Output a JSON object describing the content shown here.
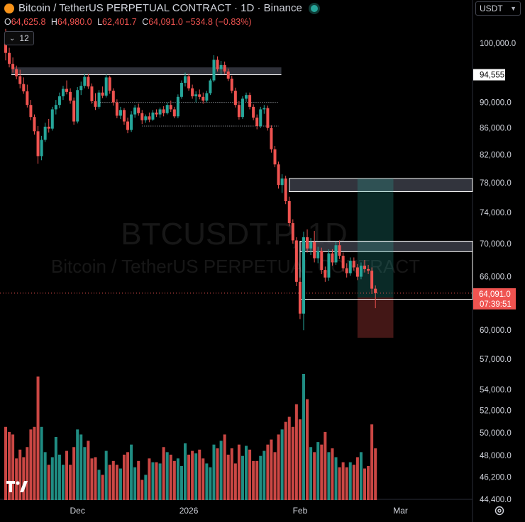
{
  "header": {
    "title": "Bitcoin / TetherUS PERPETUAL CONTRACT · 1D · Binance",
    "ohlc": {
      "open_label": "O",
      "open": "64,625.8",
      "high_label": "H",
      "high": "64,980.0",
      "low_label": "L",
      "low": "62,401.7",
      "close_label": "C",
      "close": "64,091.0",
      "change": "−534.8 (−0.83%)"
    },
    "indicator_count": "12",
    "currency": "USDT"
  },
  "watermark": {
    "symbol": "BTCUSDT.P, 1D",
    "name": "Bitcoin / TetherUS PERPETUAL CONTRACT"
  },
  "colors": {
    "up": "#26a69a",
    "down": "#ef5350",
    "background": "#000000",
    "axis_text": "#d1d4dc"
  },
  "chart_data": {
    "type": "candlestick",
    "symbol": "BTCUSDT.P",
    "interval": "1D",
    "y_scale": "log",
    "ylim": [
      44400,
      104000
    ],
    "y_ticks": [
      {
        "value": 100000,
        "label": "100,000.0"
      },
      {
        "value": 94555,
        "label": "94,555.0"
      },
      {
        "value": 90000,
        "label": "90,000.0"
      },
      {
        "value": 86000,
        "label": "86,000.0"
      },
      {
        "value": 82000,
        "label": "82,000.0"
      },
      {
        "value": 78000,
        "label": "78,000.0"
      },
      {
        "value": 74000,
        "label": "74,000.0"
      },
      {
        "value": 70000,
        "label": "70,000.0"
      },
      {
        "value": 66000,
        "label": "66,000.0"
      },
      {
        "value": 60000,
        "label": "60,000.0"
      },
      {
        "value": 57000,
        "label": "57,000.0"
      },
      {
        "value": 54000,
        "label": "54,000.0"
      },
      {
        "value": 52000,
        "label": "52,000.0"
      },
      {
        "value": 50000,
        "label": "50,000.0"
      },
      {
        "value": 48000,
        "label": "48,000.0"
      },
      {
        "value": 46200,
        "label": "46,200.0"
      },
      {
        "value": 44400,
        "label": "44,400.0"
      }
    ],
    "x_labels": [
      {
        "index": 20,
        "label": "Dec"
      },
      {
        "index": 51,
        "label": "2026"
      },
      {
        "index": 82,
        "label": "Feb"
      },
      {
        "index": 110,
        "label": "Mar"
      }
    ],
    "price_tag": {
      "value": 64091,
      "label": "64,091.0",
      "countdown": "07:39:51"
    },
    "horizontal_level": {
      "value": 94555,
      "label": "94,555.0"
    },
    "candles": [
      [
        101600,
        102600,
        97000,
        98300
      ],
      [
        98300,
        99200,
        95800,
        96400
      ],
      [
        96400,
        97500,
        94900,
        95500
      ],
      [
        95500,
        96100,
        93800,
        94300
      ],
      [
        94300,
        95400,
        92300,
        93000
      ],
      [
        93000,
        94100,
        91400,
        91800
      ],
      [
        91800,
        92900,
        89200,
        89600
      ],
      [
        89600,
        90400,
        87200,
        87700
      ],
      [
        87700,
        88100,
        85000,
        85500
      ],
      [
        85500,
        86300,
        80700,
        81800
      ],
      [
        81800,
        84800,
        81200,
        84200
      ],
      [
        84200,
        86800,
        83900,
        86200
      ],
      [
        86200,
        87400,
        85300,
        85900
      ],
      [
        85900,
        89300,
        85600,
        88900
      ],
      [
        88900,
        90400,
        88100,
        89600
      ],
      [
        89600,
        91600,
        89100,
        91000
      ],
      [
        91000,
        92700,
        90400,
        92200
      ],
      [
        92200,
        93600,
        91300,
        91700
      ],
      [
        91700,
        92300,
        89800,
        90300
      ],
      [
        90300,
        90800,
        86500,
        87000
      ],
      [
        87000,
        92500,
        86700,
        92000
      ],
      [
        92000,
        93400,
        91200,
        92700
      ],
      [
        92700,
        94700,
        92300,
        94200
      ],
      [
        94200,
        94700,
        92200,
        92600
      ],
      [
        92600,
        93100,
        89800,
        90200
      ],
      [
        90200,
        91500,
        88800,
        89300
      ],
      [
        89300,
        92000,
        89000,
        91600
      ],
      [
        91600,
        92600,
        90700,
        91100
      ],
      [
        91100,
        94600,
        90800,
        94100
      ],
      [
        94100,
        94400,
        91400,
        91900
      ],
      [
        91900,
        92300,
        89500,
        90000
      ],
      [
        90000,
        90500,
        87500,
        87900
      ],
      [
        87900,
        89300,
        87400,
        88800
      ],
      [
        88800,
        89100,
        86500,
        87000
      ],
      [
        87000,
        87600,
        85200,
        85700
      ],
      [
        85700,
        88600,
        85400,
        88100
      ],
      [
        88100,
        89600,
        87600,
        89200
      ],
      [
        89200,
        89800,
        87900,
        88300
      ],
      [
        88300,
        88800,
        86600,
        87200
      ],
      [
        87200,
        88100,
        86800,
        87800
      ],
      [
        87800,
        88400,
        86900,
        87300
      ],
      [
        87300,
        88800,
        87100,
        88400
      ],
      [
        88400,
        88900,
        87700,
        88100
      ],
      [
        88100,
        89200,
        87600,
        88900
      ],
      [
        88900,
        89400,
        87800,
        88300
      ],
      [
        88300,
        90000,
        88100,
        89600
      ],
      [
        89600,
        90300,
        88500,
        88900
      ],
      [
        88900,
        89300,
        87500,
        87800
      ],
      [
        87800,
        91300,
        87500,
        90900
      ],
      [
        90900,
        93600,
        90600,
        93200
      ],
      [
        93200,
        94900,
        92600,
        94300
      ],
      [
        94300,
        94700,
        91900,
        92300
      ],
      [
        92300,
        92900,
        90600,
        91000
      ],
      [
        91000,
        91800,
        90000,
        91300
      ],
      [
        91300,
        92100,
        90500,
        90900
      ],
      [
        90900,
        91600,
        89800,
        90300
      ],
      [
        90300,
        91900,
        90000,
        91500
      ],
      [
        91500,
        93900,
        91200,
        93600
      ],
      [
        93600,
        97900,
        93300,
        97100
      ],
      [
        97100,
        97700,
        95100,
        95500
      ],
      [
        95500,
        96900,
        94600,
        96200
      ],
      [
        96200,
        96800,
        94700,
        95100
      ],
      [
        95100,
        95600,
        93500,
        93900
      ],
      [
        93900,
        94400,
        91500,
        91900
      ],
      [
        91900,
        92400,
        89200,
        89600
      ],
      [
        89600,
        90200,
        87300,
        87700
      ],
      [
        87700,
        91000,
        87400,
        90600
      ],
      [
        90600,
        91600,
        90100,
        91200
      ],
      [
        91200,
        91600,
        88900,
        89300
      ],
      [
        89300,
        89700,
        87200,
        87600
      ],
      [
        87600,
        88100,
        85800,
        86300
      ],
      [
        86300,
        89300,
        86000,
        88900
      ],
      [
        88900,
        89600,
        88200,
        89100
      ],
      [
        89100,
        89500,
        85600,
        86000
      ],
      [
        86000,
        86400,
        82300,
        82800
      ],
      [
        82800,
        83300,
        80200,
        80600
      ],
      [
        80600,
        81000,
        77200,
        77700
      ],
      [
        77700,
        79200,
        76600,
        78600
      ],
      [
        78600,
        79000,
        75100,
        75500
      ],
      [
        75500,
        76100,
        72200,
        72600
      ],
      [
        72600,
        73100,
        70000,
        70400
      ],
      [
        70400,
        70800,
        64900,
        65400
      ],
      [
        65400,
        65900,
        61200,
        61800
      ],
      [
        61800,
        71500,
        60000,
        70800
      ],
      [
        70800,
        71800,
        68900,
        69400
      ],
      [
        69400,
        70700,
        68600,
        70200
      ],
      [
        70200,
        71600,
        67700,
        68200
      ],
      [
        68200,
        69600,
        67600,
        69100
      ],
      [
        69100,
        69500,
        66300,
        66800
      ],
      [
        66800,
        67200,
        65400,
        65900
      ],
      [
        65900,
        69300,
        65500,
        68800
      ],
      [
        68800,
        69300,
        67300,
        67700
      ],
      [
        67700,
        70300,
        67400,
        69800
      ],
      [
        69800,
        70400,
        68100,
        68500
      ],
      [
        68500,
        68900,
        66600,
        67000
      ],
      [
        67000,
        67600,
        65900,
        66400
      ],
      [
        66400,
        68300,
        66100,
        67900
      ],
      [
        67900,
        68300,
        66700,
        67100
      ],
      [
        67100,
        67500,
        65600,
        66000
      ],
      [
        66000,
        67700,
        65700,
        67300
      ],
      [
        67300,
        68000,
        66500,
        66900
      ],
      [
        66900,
        67400,
        66300,
        66700
      ],
      [
        66700,
        67100,
        64000,
        64600
      ],
      [
        64600,
        64980,
        62402,
        64091
      ]
    ],
    "volumes": [
      0.58,
      0.54,
      0.52,
      0.33,
      0.4,
      0.34,
      0.42,
      0.56,
      0.58,
      0.98,
      0.58,
      0.38,
      0.28,
      0.34,
      0.5,
      0.36,
      0.28,
      0.39,
      0.28,
      0.42,
      0.56,
      0.52,
      0.42,
      0.47,
      0.33,
      0.34,
      0.24,
      0.2,
      0.39,
      0.28,
      0.31,
      0.28,
      0.25,
      0.36,
      0.38,
      0.44,
      0.26,
      0.31,
      0.16,
      0.2,
      0.33,
      0.3,
      0.3,
      0.29,
      0.42,
      0.38,
      0.36,
      0.31,
      0.33,
      0.27,
      0.45,
      0.36,
      0.39,
      0.37,
      0.4,
      0.33,
      0.29,
      0.26,
      0.44,
      0.41,
      0.47,
      0.52,
      0.36,
      0.41,
      0.29,
      0.44,
      0.35,
      0.43,
      0.4,
      0.31,
      0.31,
      0.35,
      0.39,
      0.44,
      0.48,
      0.38,
      0.52,
      0.56,
      0.62,
      0.66,
      0.58,
      0.76,
      0.64,
      1.0,
      0.8,
      0.42,
      0.38,
      0.46,
      0.44,
      0.54,
      0.38,
      0.41,
      0.34,
      0.26,
      0.3,
      0.26,
      0.3,
      0.28,
      0.34,
      0.38,
      0.25,
      0.27,
      0.6,
      0.41
    ],
    "drawings": {
      "resistance_zone": {
        "top": 95800,
        "bottom": 94555,
        "x0": 0,
        "x1": 76
      },
      "dotted_levels": [
        {
          "value": 90000,
          "x0": 24,
          "x1": 76
        },
        {
          "value": 86300,
          "x0": 38,
          "x1": 76
        }
      ],
      "supply_zones": [
        {
          "top": 78600,
          "bottom": 76800,
          "x0": 79,
          "x1": 118
        },
        {
          "top": 70300,
          "bottom": 69000,
          "x0": 82,
          "x1": 118
        }
      ],
      "lower_line": {
        "value": 63400,
        "x0": 82,
        "x1": 118
      },
      "position": {
        "entry": 63600,
        "target": 78600,
        "stop": 59200,
        "x0": 98,
        "x1": 108
      }
    }
  }
}
